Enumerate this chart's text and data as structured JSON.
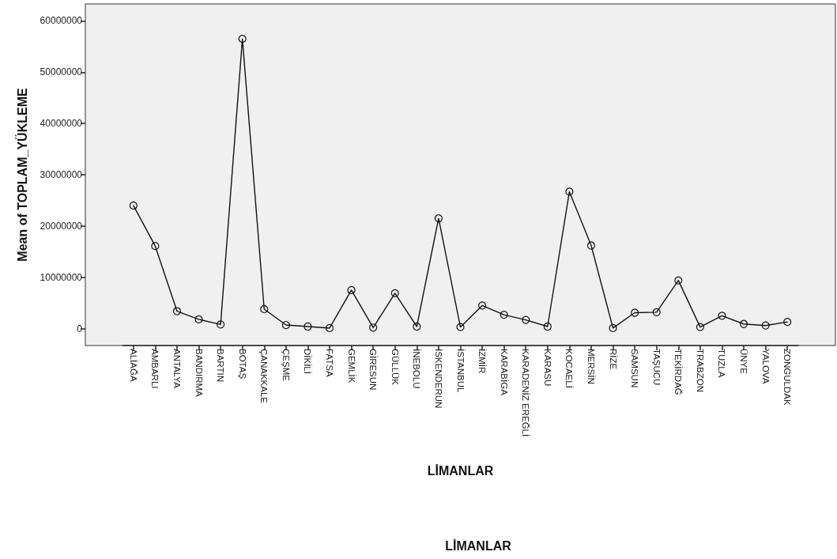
{
  "chart_data": {
    "type": "line",
    "xlabel": "LİMANLAR",
    "ylabel": "Mean of TOPLAM_YÜKLEME",
    "categories": [
      "ALİAĞA",
      "AMBARLI",
      "ANTALYA",
      "BANDIRMA",
      "BARTIN",
      "BOTAŞ",
      "ÇANAKKALE",
      "ÇEŞME",
      "DİKİLİ",
      "FATSA",
      "GEMLİK",
      "GİRESUN",
      "GÜLLÜK",
      "İNEBOLU",
      "İSKENDERUN",
      "İSTANBUL",
      "İZMİR",
      "KARABİGA",
      "KARADENİZ EREĞLİ",
      "KARASU",
      "KOCAELİ",
      "MERSİN",
      "RİZE",
      "SAMSUN",
      "TAŞUCU",
      "TEKİRDAĞ",
      "TRABZON",
      "TUZLA",
      "ÜNYE",
      "YALOVA",
      "ZONGULDAK"
    ],
    "series": [
      {
        "color": "#111111",
        "values": [
          24000000,
          16100000,
          3400000,
          1800000,
          800000,
          56500000,
          3800000,
          700000,
          400000,
          100000,
          7500000,
          200000,
          6900000,
          400000,
          21500000,
          300000,
          4500000,
          2700000,
          1700000,
          400000,
          26700000,
          16200000,
          100000,
          3100000,
          3200000,
          9400000,
          300000,
          2500000,
          900000,
          600000,
          1300000
        ]
      }
    ],
    "ylim": [
      -3300000,
      63300000
    ],
    "yticks": [
      0,
      10000000,
      20000000,
      30000000,
      40000000,
      50000000,
      60000000
    ],
    "marker": "circle",
    "line_style": "solid",
    "grid": false,
    "annotations": [
      "LİMANLAR"
    ]
  }
}
